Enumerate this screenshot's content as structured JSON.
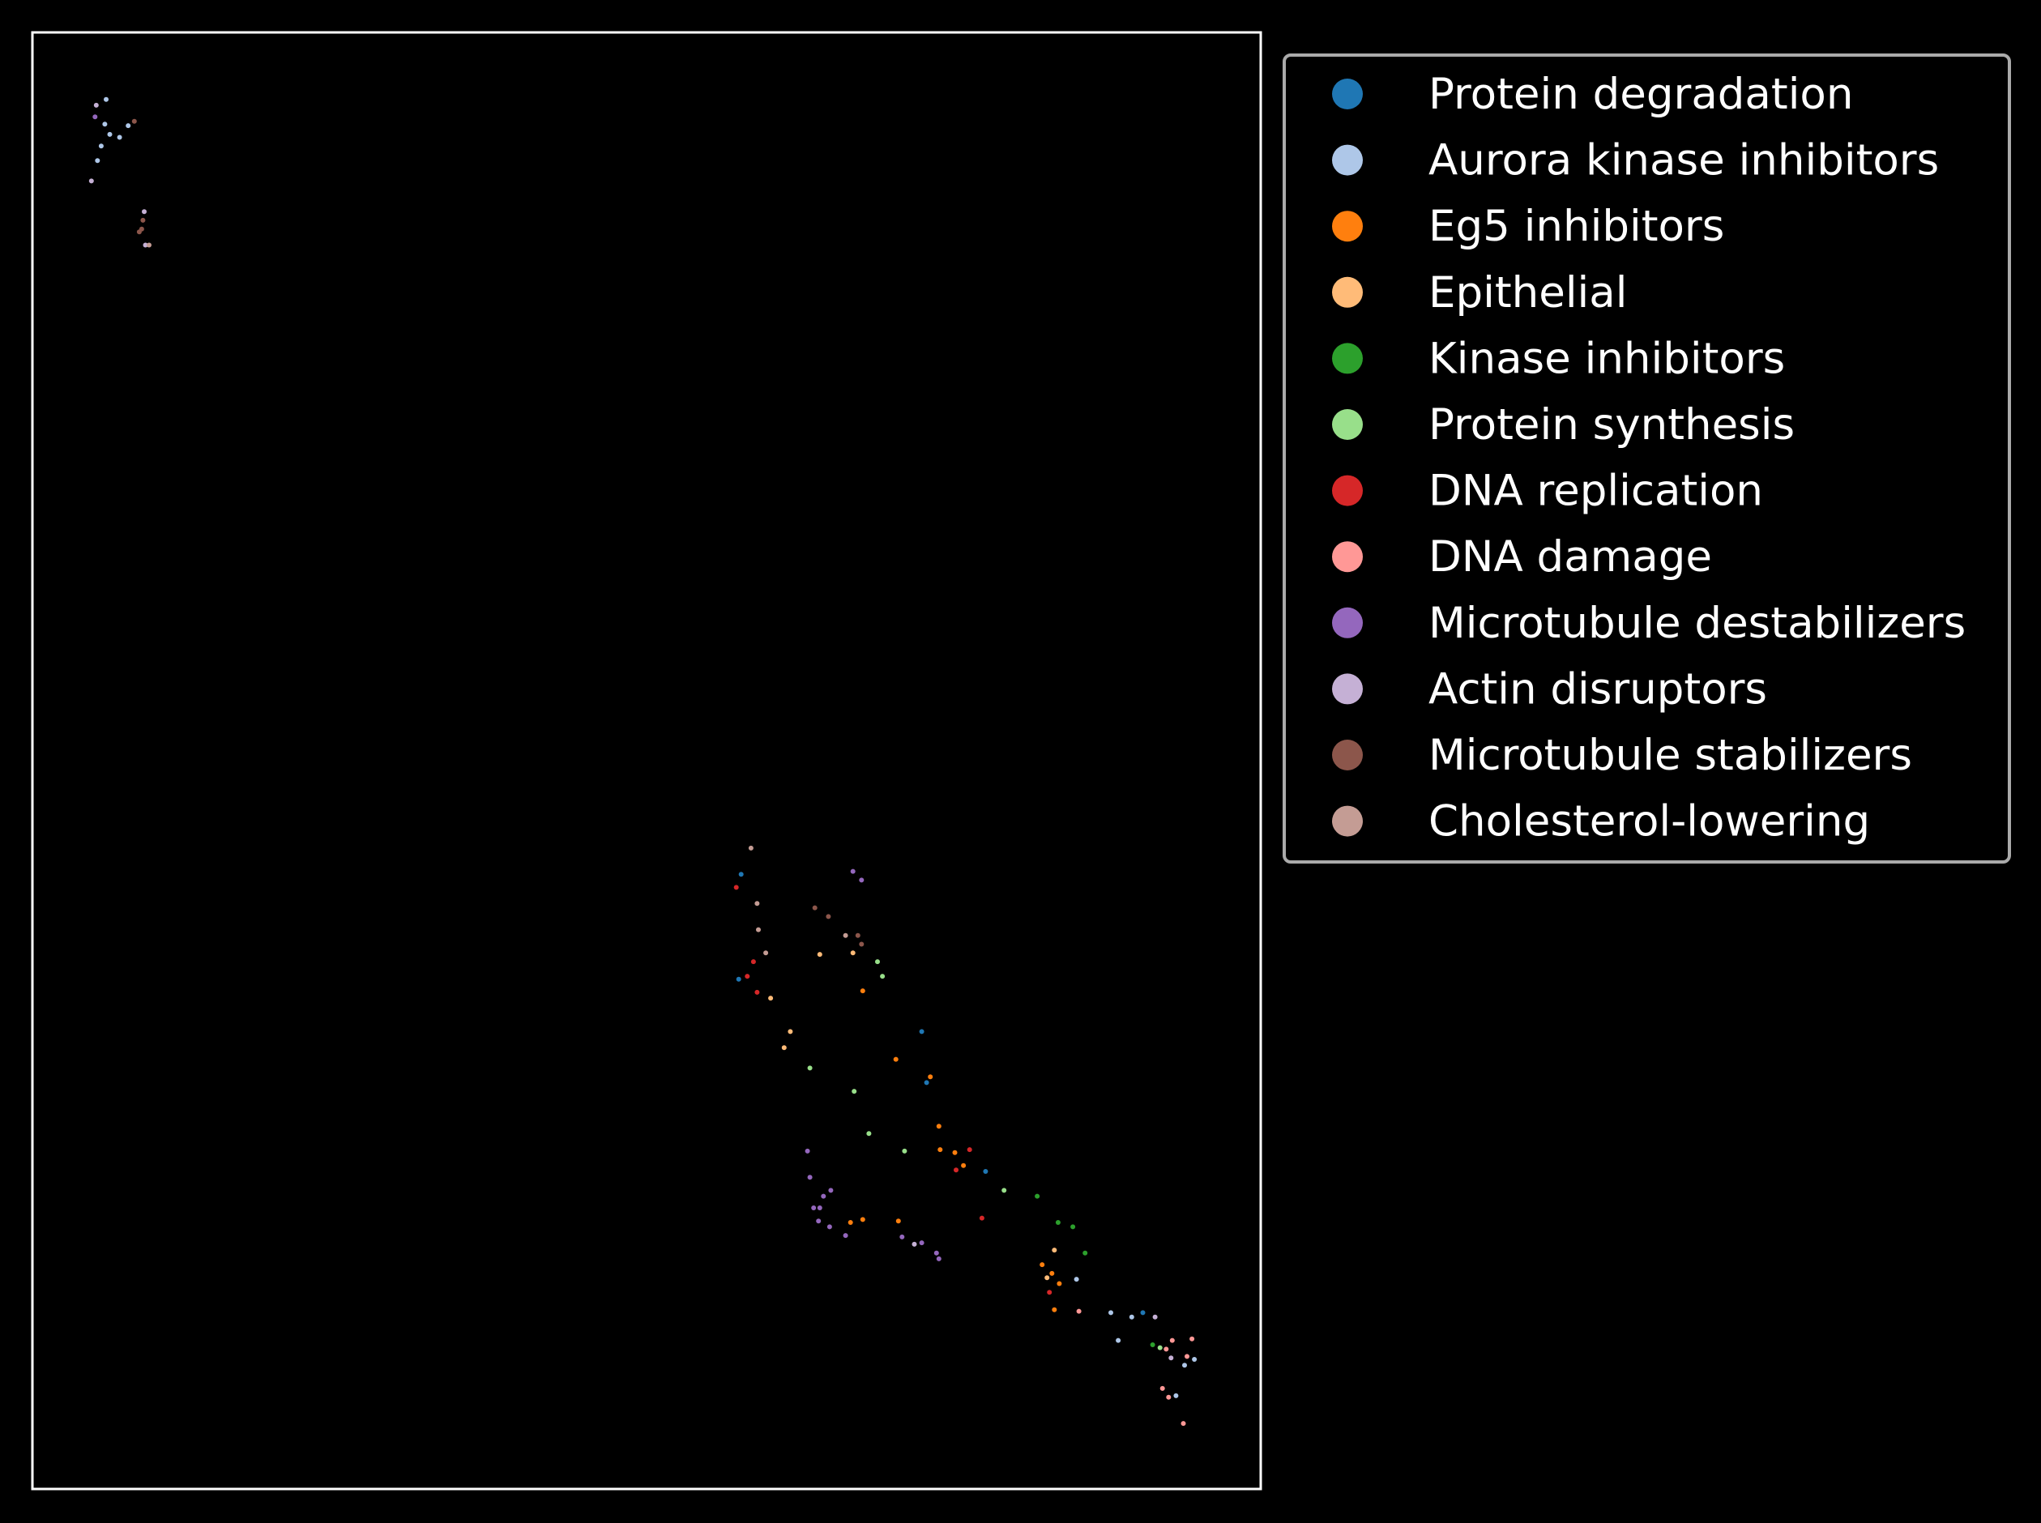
{
  "chart_data": {
    "type": "scatter",
    "title": "",
    "xlabel": "",
    "ylabel": "",
    "xlim": [
      0,
      100
    ],
    "ylim": [
      0,
      100
    ],
    "axes_ticks": "none",
    "grid": false,
    "background": "#000000",
    "frame_color": "#ffffff",
    "legend": {
      "position": "outside-right-top",
      "frame_color": "#aaaaaa"
    },
    "series": [
      {
        "name": "Protein degradation",
        "color": "#1f77b4",
        "points": [
          [
            57.7,
            42.2
          ],
          [
            57.5,
            35.0
          ],
          [
            72.4,
            31.4
          ],
          [
            72.8,
            27.9
          ],
          [
            77.6,
            21.8
          ],
          [
            90.4,
            12.1
          ]
        ]
      },
      {
        "name": "Aurora kinase inhibitors",
        "color": "#aec7e8",
        "points": [
          [
            6.0,
            95.4
          ],
          [
            5.9,
            93.7
          ],
          [
            6.3,
            93.0
          ],
          [
            7.8,
            93.6
          ],
          [
            7.1,
            92.8
          ],
          [
            5.3,
            91.2
          ],
          [
            5.6,
            92.2
          ],
          [
            85.0,
            14.4
          ],
          [
            87.8,
            12.1
          ],
          [
            89.5,
            11.8
          ],
          [
            93.8,
            8.5
          ],
          [
            94.6,
            8.9
          ],
          [
            93.1,
            6.4
          ],
          [
            88.4,
            10.2
          ]
        ]
      },
      {
        "name": "Eg5 inhibitors",
        "color": "#ff7f0e",
        "points": [
          [
            67.6,
            34.2
          ],
          [
            70.3,
            29.5
          ],
          [
            73.1,
            28.3
          ],
          [
            73.8,
            24.9
          ],
          [
            73.9,
            23.3
          ],
          [
            75.1,
            23.1
          ],
          [
            75.8,
            22.2
          ],
          [
            66.6,
            18.3
          ],
          [
            67.6,
            18.5
          ],
          [
            70.5,
            18.4
          ],
          [
            82.2,
            15.4
          ],
          [
            83.0,
            14.8
          ],
          [
            83.6,
            14.1
          ],
          [
            83.2,
            12.3
          ]
        ]
      },
      {
        "name": "Epithelial",
        "color": "#ffbb78",
        "points": [
          [
            60.1,
            33.7
          ],
          [
            61.7,
            31.4
          ],
          [
            61.2,
            30.3
          ],
          [
            64.1,
            36.7
          ],
          [
            66.8,
            36.8
          ],
          [
            83.2,
            16.4
          ],
          [
            82.6,
            14.5
          ]
        ]
      },
      {
        "name": "Kinase inhibitors",
        "color": "#2ca02c",
        "points": [
          [
            81.8,
            20.1
          ],
          [
            83.5,
            18.3
          ],
          [
            84.7,
            18.0
          ],
          [
            85.7,
            16.2
          ],
          [
            91.2,
            9.9
          ]
        ]
      },
      {
        "name": "Protein synthesis",
        "color": "#98df8a",
        "points": [
          [
            68.8,
            36.2
          ],
          [
            69.2,
            35.2
          ],
          [
            63.3,
            28.9
          ],
          [
            66.9,
            27.3
          ],
          [
            68.1,
            24.4
          ],
          [
            71.0,
            23.2
          ],
          [
            79.1,
            20.5
          ],
          [
            91.8,
            9.7
          ]
        ]
      },
      {
        "name": "DNA replication",
        "color": "#d62728",
        "points": [
          [
            57.3,
            41.3
          ],
          [
            58.7,
            36.2
          ],
          [
            58.2,
            35.2
          ],
          [
            59.0,
            34.1
          ],
          [
            76.3,
            23.3
          ],
          [
            75.2,
            21.9
          ],
          [
            77.3,
            18.6
          ],
          [
            82.8,
            13.5
          ]
        ]
      },
      {
        "name": "DNA damage",
        "color": "#ff9896",
        "points": [
          [
            92.8,
            10.2
          ],
          [
            94.4,
            10.3
          ],
          [
            92.3,
            9.6
          ],
          [
            94.0,
            9.1
          ],
          [
            92.0,
            6.9
          ],
          [
            92.5,
            6.3
          ],
          [
            93.7,
            4.5
          ],
          [
            85.2,
            12.2
          ]
        ]
      },
      {
        "name": "Microtubule destabilizers",
        "color": "#9467bd",
        "points": [
          [
            66.8,
            42.4
          ],
          [
            67.5,
            41.8
          ],
          [
            5.1,
            94.2
          ],
          [
            63.1,
            23.2
          ],
          [
            63.3,
            21.4
          ],
          [
            64.4,
            20.1
          ],
          [
            65.0,
            20.5
          ],
          [
            63.6,
            19.3
          ],
          [
            64.1,
            19.3
          ],
          [
            64.0,
            18.4
          ],
          [
            64.9,
            18.0
          ],
          [
            66.2,
            17.4
          ],
          [
            70.8,
            17.3
          ],
          [
            72.4,
            16.9
          ],
          [
            73.8,
            15.8
          ],
          [
            73.6,
            16.2
          ]
        ]
      },
      {
        "name": "Actin disruptors",
        "color": "#c5b0d5",
        "points": [
          [
            5.2,
            95.0
          ],
          [
            4.8,
            89.8
          ],
          [
            9.1,
            87.7
          ],
          [
            9.2,
            85.4
          ],
          [
            71.8,
            16.8
          ],
          [
            91.4,
            11.8
          ],
          [
            92.7,
            9.0
          ]
        ]
      },
      {
        "name": "Microtubule stabilizers",
        "color": "#8c564b",
        "points": [
          [
            8.3,
            93.9
          ],
          [
            9.0,
            87.1
          ],
          [
            8.9,
            86.5
          ],
          [
            8.7,
            86.3
          ],
          [
            63.7,
            39.9
          ],
          [
            64.8,
            39.3
          ],
          [
            67.2,
            38.0
          ],
          [
            67.5,
            37.4
          ]
        ]
      },
      {
        "name": "Cholesterol-lowering",
        "color": "#c49c94",
        "points": [
          [
            58.5,
            44.0
          ],
          [
            59.0,
            40.2
          ],
          [
            59.1,
            38.4
          ],
          [
            59.7,
            36.8
          ],
          [
            66.2,
            38.0
          ],
          [
            9.5,
            85.4
          ]
        ]
      }
    ]
  }
}
